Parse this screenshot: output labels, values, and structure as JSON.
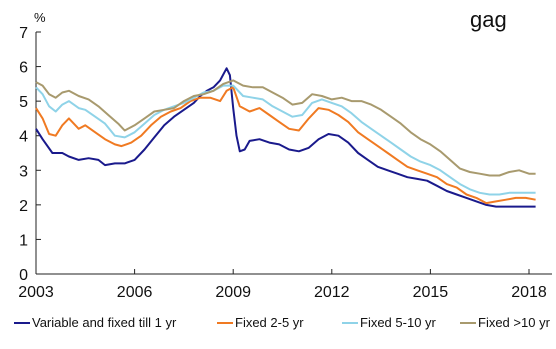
{
  "chart_data": {
    "type": "line",
    "title": "",
    "title_fragment": "gag",
    "ylabel": "%",
    "xlabel": "",
    "xlim": [
      2003,
      2018.7
    ],
    "ylim": [
      0,
      7
    ],
    "xticks": [
      2003,
      2006,
      2009,
      2012,
      2015,
      2018
    ],
    "xtick_labels": [
      "2003",
      "2006",
      "2009",
      "2012",
      "2015",
      "2018"
    ],
    "yticks": [
      0,
      1,
      2,
      3,
      4,
      5,
      6,
      7
    ],
    "ytick_labels": [
      "0",
      "1",
      "2",
      "3",
      "4",
      "5",
      "6",
      "7"
    ],
    "grid": false,
    "legend_position": "bottom",
    "series": [
      {
        "name": "Variable and fixed till 1 yr",
        "color": "#1a1a8c",
        "points": [
          [
            2003.0,
            4.2
          ],
          [
            2003.2,
            3.9
          ],
          [
            2003.5,
            3.5
          ],
          [
            2003.8,
            3.5
          ],
          [
            2004.0,
            3.4
          ],
          [
            2004.3,
            3.3
          ],
          [
            2004.6,
            3.35
          ],
          [
            2004.9,
            3.3
          ],
          [
            2005.1,
            3.15
          ],
          [
            2005.4,
            3.2
          ],
          [
            2005.7,
            3.2
          ],
          [
            2006.0,
            3.3
          ],
          [
            2006.3,
            3.6
          ],
          [
            2006.6,
            3.95
          ],
          [
            2006.9,
            4.3
          ],
          [
            2007.2,
            4.55
          ],
          [
            2007.5,
            4.75
          ],
          [
            2007.8,
            4.95
          ],
          [
            2008.0,
            5.15
          ],
          [
            2008.2,
            5.3
          ],
          [
            2008.4,
            5.4
          ],
          [
            2008.6,
            5.6
          ],
          [
            2008.8,
            5.95
          ],
          [
            2008.9,
            5.75
          ],
          [
            2009.0,
            4.8
          ],
          [
            2009.1,
            4.0
          ],
          [
            2009.2,
            3.55
          ],
          [
            2009.35,
            3.6
          ],
          [
            2009.5,
            3.85
          ],
          [
            2009.8,
            3.9
          ],
          [
            2010.1,
            3.8
          ],
          [
            2010.4,
            3.75
          ],
          [
            2010.7,
            3.6
          ],
          [
            2011.0,
            3.55
          ],
          [
            2011.3,
            3.65
          ],
          [
            2011.6,
            3.9
          ],
          [
            2011.9,
            4.05
          ],
          [
            2012.2,
            4.0
          ],
          [
            2012.5,
            3.8
          ],
          [
            2012.8,
            3.5
          ],
          [
            2013.1,
            3.3
          ],
          [
            2013.4,
            3.1
          ],
          [
            2013.7,
            3.0
          ],
          [
            2014.0,
            2.9
          ],
          [
            2014.3,
            2.8
          ],
          [
            2014.6,
            2.75
          ],
          [
            2014.9,
            2.7
          ],
          [
            2015.2,
            2.55
          ],
          [
            2015.5,
            2.4
          ],
          [
            2015.8,
            2.3
          ],
          [
            2016.1,
            2.2
          ],
          [
            2016.4,
            2.1
          ],
          [
            2016.7,
            2.0
          ],
          [
            2017.0,
            1.95
          ],
          [
            2017.3,
            1.95
          ],
          [
            2017.6,
            1.95
          ],
          [
            2017.9,
            1.95
          ],
          [
            2018.2,
            1.95
          ]
        ]
      },
      {
        "name": "Fixed 2-5 yr",
        "color": "#f07a22",
        "points": [
          [
            2003.0,
            4.8
          ],
          [
            2003.2,
            4.5
          ],
          [
            2003.4,
            4.05
          ],
          [
            2003.6,
            4.0
          ],
          [
            2003.8,
            4.3
          ],
          [
            2004.0,
            4.5
          ],
          [
            2004.3,
            4.2
          ],
          [
            2004.5,
            4.3
          ],
          [
            2004.8,
            4.1
          ],
          [
            2005.1,
            3.9
          ],
          [
            2005.4,
            3.75
          ],
          [
            2005.6,
            3.7
          ],
          [
            2005.9,
            3.8
          ],
          [
            2006.2,
            4.0
          ],
          [
            2006.5,
            4.3
          ],
          [
            2006.8,
            4.55
          ],
          [
            2007.1,
            4.7
          ],
          [
            2007.4,
            4.8
          ],
          [
            2007.7,
            5.0
          ],
          [
            2008.0,
            5.1
          ],
          [
            2008.3,
            5.1
          ],
          [
            2008.6,
            5.0
          ],
          [
            2008.8,
            5.3
          ],
          [
            2009.0,
            5.4
          ],
          [
            2009.2,
            4.85
          ],
          [
            2009.5,
            4.7
          ],
          [
            2009.8,
            4.8
          ],
          [
            2010.1,
            4.6
          ],
          [
            2010.4,
            4.4
          ],
          [
            2010.7,
            4.2
          ],
          [
            2011.0,
            4.15
          ],
          [
            2011.3,
            4.5
          ],
          [
            2011.6,
            4.8
          ],
          [
            2011.9,
            4.75
          ],
          [
            2012.2,
            4.6
          ],
          [
            2012.5,
            4.4
          ],
          [
            2012.8,
            4.1
          ],
          [
            2013.1,
            3.9
          ],
          [
            2013.4,
            3.7
          ],
          [
            2013.7,
            3.5
          ],
          [
            2014.0,
            3.3
          ],
          [
            2014.3,
            3.1
          ],
          [
            2014.6,
            3.0
          ],
          [
            2014.9,
            2.9
          ],
          [
            2015.2,
            2.8
          ],
          [
            2015.5,
            2.6
          ],
          [
            2015.8,
            2.5
          ],
          [
            2016.1,
            2.3
          ],
          [
            2016.4,
            2.2
          ],
          [
            2016.7,
            2.05
          ],
          [
            2017.0,
            2.1
          ],
          [
            2017.3,
            2.15
          ],
          [
            2017.6,
            2.2
          ],
          [
            2017.9,
            2.2
          ],
          [
            2018.2,
            2.15
          ]
        ]
      },
      {
        "name": "Fixed 5-10 yr",
        "color": "#8fd3e8",
        "points": [
          [
            2003.0,
            5.4
          ],
          [
            2003.2,
            5.2
          ],
          [
            2003.4,
            4.85
          ],
          [
            2003.6,
            4.7
          ],
          [
            2003.8,
            4.9
          ],
          [
            2004.0,
            5.0
          ],
          [
            2004.3,
            4.8
          ],
          [
            2004.5,
            4.75
          ],
          [
            2004.8,
            4.55
          ],
          [
            2005.1,
            4.35
          ],
          [
            2005.4,
            4.0
          ],
          [
            2005.7,
            3.95
          ],
          [
            2006.0,
            4.1
          ],
          [
            2006.3,
            4.35
          ],
          [
            2006.6,
            4.6
          ],
          [
            2006.9,
            4.75
          ],
          [
            2007.2,
            4.85
          ],
          [
            2007.5,
            4.95
          ],
          [
            2007.8,
            5.1
          ],
          [
            2008.1,
            5.25
          ],
          [
            2008.4,
            5.3
          ],
          [
            2008.7,
            5.45
          ],
          [
            2009.0,
            5.45
          ],
          [
            2009.3,
            5.15
          ],
          [
            2009.6,
            5.1
          ],
          [
            2009.9,
            5.05
          ],
          [
            2010.2,
            4.85
          ],
          [
            2010.5,
            4.7
          ],
          [
            2010.8,
            4.55
          ],
          [
            2011.1,
            4.6
          ],
          [
            2011.4,
            4.95
          ],
          [
            2011.7,
            5.05
          ],
          [
            2012.0,
            4.95
          ],
          [
            2012.3,
            4.85
          ],
          [
            2012.6,
            4.65
          ],
          [
            2012.9,
            4.4
          ],
          [
            2013.2,
            4.2
          ],
          [
            2013.5,
            4.0
          ],
          [
            2013.8,
            3.8
          ],
          [
            2014.1,
            3.6
          ],
          [
            2014.4,
            3.4
          ],
          [
            2014.7,
            3.25
          ],
          [
            2015.0,
            3.15
          ],
          [
            2015.3,
            3.0
          ],
          [
            2015.6,
            2.8
          ],
          [
            2015.9,
            2.6
          ],
          [
            2016.2,
            2.45
          ],
          [
            2016.5,
            2.35
          ],
          [
            2016.8,
            2.3
          ],
          [
            2017.1,
            2.3
          ],
          [
            2017.4,
            2.35
          ],
          [
            2017.7,
            2.35
          ],
          [
            2018.0,
            2.35
          ],
          [
            2018.2,
            2.35
          ]
        ]
      },
      {
        "name": "Fixed >10 yr",
        "color": "#a89a6e",
        "points": [
          [
            2003.0,
            5.55
          ],
          [
            2003.2,
            5.45
          ],
          [
            2003.4,
            5.2
          ],
          [
            2003.6,
            5.1
          ],
          [
            2003.8,
            5.25
          ],
          [
            2004.0,
            5.3
          ],
          [
            2004.3,
            5.15
          ],
          [
            2004.6,
            5.05
          ],
          [
            2004.9,
            4.85
          ],
          [
            2005.2,
            4.6
          ],
          [
            2005.5,
            4.35
          ],
          [
            2005.7,
            4.15
          ],
          [
            2006.0,
            4.3
          ],
          [
            2006.3,
            4.5
          ],
          [
            2006.6,
            4.7
          ],
          [
            2006.9,
            4.75
          ],
          [
            2007.2,
            4.8
          ],
          [
            2007.5,
            5.0
          ],
          [
            2007.8,
            5.15
          ],
          [
            2008.1,
            5.2
          ],
          [
            2008.4,
            5.3
          ],
          [
            2008.7,
            5.5
          ],
          [
            2009.0,
            5.6
          ],
          [
            2009.3,
            5.45
          ],
          [
            2009.6,
            5.4
          ],
          [
            2009.9,
            5.4
          ],
          [
            2010.2,
            5.25
          ],
          [
            2010.5,
            5.1
          ],
          [
            2010.8,
            4.9
          ],
          [
            2011.1,
            4.95
          ],
          [
            2011.4,
            5.2
          ],
          [
            2011.7,
            5.15
          ],
          [
            2012.0,
            5.05
          ],
          [
            2012.3,
            5.1
          ],
          [
            2012.6,
            5.0
          ],
          [
            2012.9,
            5.0
          ],
          [
            2013.2,
            4.9
          ],
          [
            2013.5,
            4.75
          ],
          [
            2013.8,
            4.55
          ],
          [
            2014.1,
            4.35
          ],
          [
            2014.4,
            4.1
          ],
          [
            2014.7,
            3.9
          ],
          [
            2015.0,
            3.75
          ],
          [
            2015.3,
            3.55
          ],
          [
            2015.6,
            3.3
          ],
          [
            2015.9,
            3.05
          ],
          [
            2016.2,
            2.95
          ],
          [
            2016.5,
            2.9
          ],
          [
            2016.8,
            2.85
          ],
          [
            2017.1,
            2.85
          ],
          [
            2017.4,
            2.95
          ],
          [
            2017.7,
            3.0
          ],
          [
            2018.0,
            2.9
          ],
          [
            2018.2,
            2.9
          ]
        ]
      }
    ]
  }
}
